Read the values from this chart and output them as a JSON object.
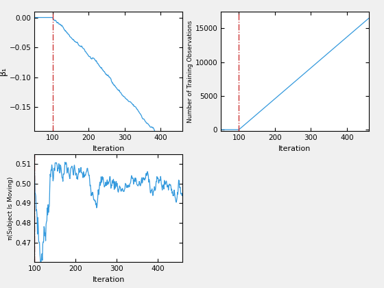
{
  "vline_x": 100,
  "vline_color": "#CC3333",
  "vline_style": "-.",
  "line_color": "#3399DD",
  "ax1": {
    "xlabel": "Iteration",
    "ylabel": "β₁",
    "xlim": [
      50,
      460
    ],
    "ylim": [
      -0.19,
      0.01
    ],
    "yticks": [
      0,
      -0.05,
      -0.1,
      -0.15
    ],
    "xticks": [
      100,
      200,
      300,
      400
    ],
    "seed": 42
  },
  "ax2": {
    "xlabel": "Iteration",
    "ylabel": "Number of Training Observations",
    "xlim": [
      50,
      460
    ],
    "ylim": [
      -200,
      17500
    ],
    "yticks": [
      0,
      5000,
      10000,
      15000
    ],
    "xticks": [
      100,
      200,
      300,
      400
    ],
    "slope": 45.8
  },
  "ax3": {
    "xlabel": "Iteration",
    "ylabel": "π(Subject Is Moving)",
    "xlim": [
      100,
      460
    ],
    "ylim": [
      0.46,
      0.515
    ],
    "yticks": [
      0.47,
      0.48,
      0.49,
      0.5,
      0.51
    ],
    "xticks": [
      100,
      200,
      300,
      400
    ],
    "seed": 7
  },
  "figure_bgcolor": "#F0F0F0",
  "axes_bgcolor": "#FFFFFF"
}
